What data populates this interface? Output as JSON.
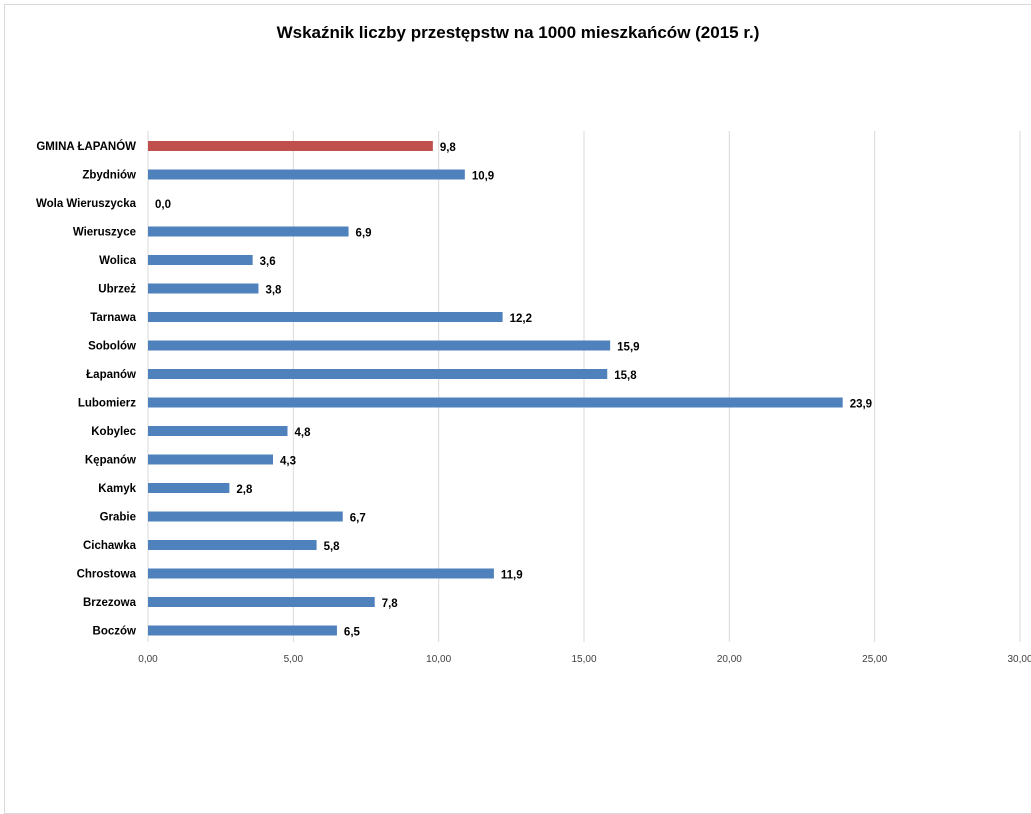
{
  "chart_data": {
    "type": "bar",
    "orientation": "horizontal",
    "title": "Wskaźnik liczby przestępstw na 1000 mieszkańców (2015 r.)",
    "xlabel": "",
    "ylabel": "",
    "xlim": [
      0,
      30
    ],
    "x_ticks": [
      "0,00",
      "5,00",
      "10,00",
      "15,00",
      "20,00",
      "25,00",
      "30,00"
    ],
    "grid": true,
    "legend": "none",
    "categories": [
      "GMINA ŁAPANÓW",
      "Zbydniów",
      "Wola Wieruszycka",
      "Wieruszyce",
      "Wolica",
      "Ubrzeż",
      "Tarnawa",
      "Sobolów",
      "Łapanów",
      "Lubomierz",
      "Kobylec",
      "Kępanów",
      "Kamyk",
      "Grabie",
      "Cichawka",
      "Chrostowa",
      "Brzezowa",
      "Boczów"
    ],
    "values": [
      9.8,
      10.9,
      0.0,
      6.9,
      3.6,
      3.8,
      12.2,
      15.9,
      15.8,
      23.9,
      4.8,
      4.3,
      2.8,
      6.7,
      5.8,
      11.9,
      7.8,
      6.5
    ],
    "value_labels": [
      "9,8",
      "10,9",
      "0,0",
      "6,9",
      "3,6",
      "3,8",
      "12,2",
      "15,9",
      "15,8",
      "23,9",
      "4,8",
      "4,3",
      "2,8",
      "6,7",
      "5,8",
      "11,9",
      "7,8",
      "6,5"
    ],
    "colors": {
      "highlight": "#c0504d",
      "default": "#4f81bd",
      "grid": "#d9d9d9"
    },
    "highlight_index": 0
  }
}
